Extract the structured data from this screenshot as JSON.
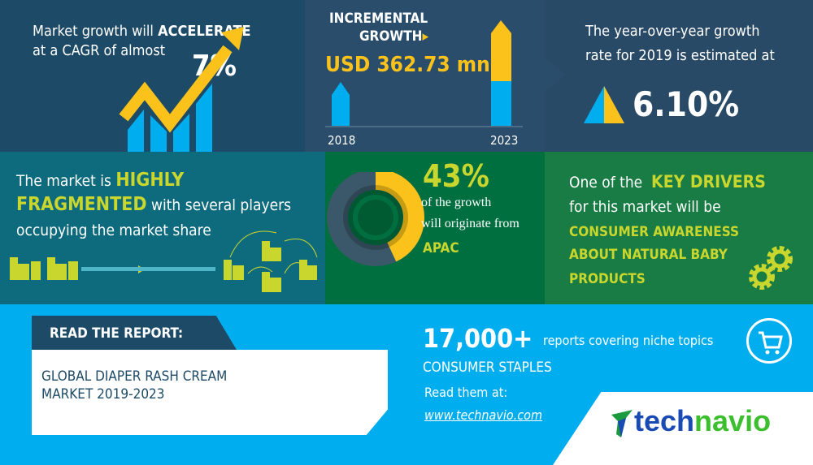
{
  "cagr": {
    "line1": "Market growth will",
    "accent": "ACCELERATE",
    "line2": "at a CAGR of almost",
    "value": "7%"
  },
  "incremental": {
    "title1": "INCREMENTAL",
    "title2": "GROWTH",
    "value": "USD 362.73 mn",
    "year_start": "2018",
    "year_end": "2023"
  },
  "yoy": {
    "line1": "The year-over-year growth",
    "line2": "rate for 2019 is estimated at",
    "value": "6.10%"
  },
  "fragmented": {
    "text1": "The market is",
    "accent1": "HIGHLY",
    "accent2": "FRAGMENTED",
    "text2": "with several players",
    "text3": "occupying the market share"
  },
  "region": {
    "value": "43%",
    "share_fraction": 0.43,
    "line1": "of the growth",
    "line2": "will originate from",
    "region": "APAC"
  },
  "drivers": {
    "line1": "One of the",
    "accent": "KEY DRIVERS",
    "line2": "for this market will be",
    "driver1": "CONSUMER AWARENESS",
    "driver2": "ABOUT NATURAL BABY",
    "driver3": "PRODUCTS"
  },
  "report": {
    "tab": "READ THE REPORT:",
    "title1": "GLOBAL DIAPER RASH CREAM",
    "title2": "MARKET 2019-2023"
  },
  "promo": {
    "count": "17,000+",
    "count_text": "reports covering niche topics",
    "category": "CONSUMER STAPLES",
    "read": "Read them at:",
    "link": "www.technavio.com"
  },
  "brand": {
    "logo_a": "tech",
    "logo_b": "navio"
  },
  "colors": {
    "yellow": "#fbc21b",
    "lime": "#c8d62e",
    "blue": "#00adef",
    "navy": "#1d4a66"
  }
}
